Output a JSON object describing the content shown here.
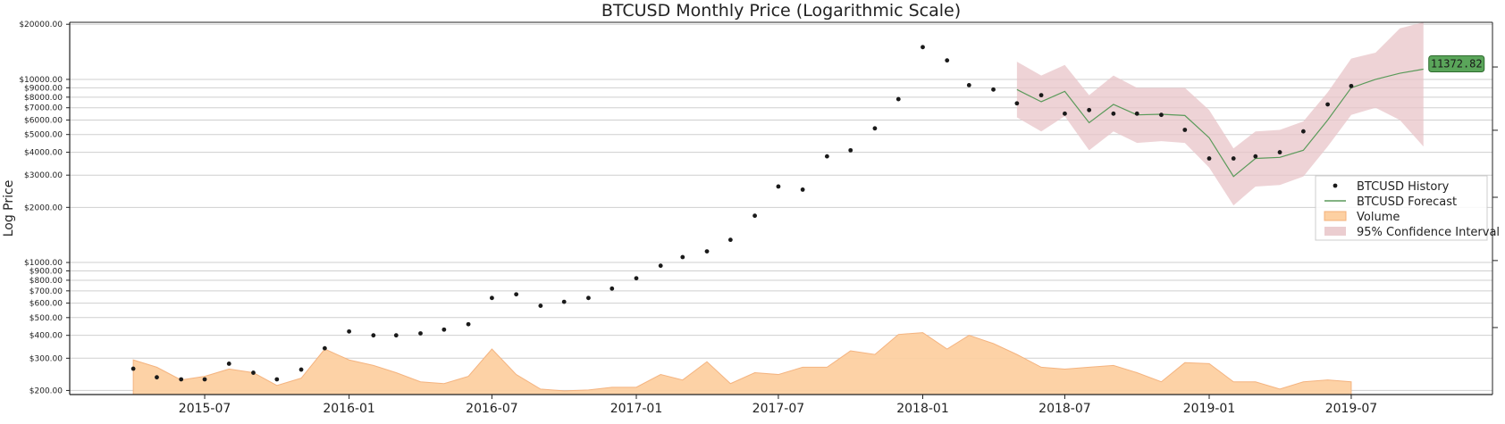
{
  "chart_data": {
    "type": "line",
    "title": "BTCUSD Monthly Price (Logarithmic Scale)",
    "ylabel": "Log Price",
    "xlabel": "",
    "yscale": "log",
    "ylim": [
      190,
      20500
    ],
    "xlim": [
      "2015-01-10",
      "2019-12-28"
    ],
    "grid": "horizontal",
    "legend_position": "right",
    "colors": {
      "history": "#1a1a1a",
      "forecast": "#5a9a5a",
      "volume": "#fdd0a2",
      "volume_edge": "#f4b07a",
      "ci": "#e8c4c8",
      "callout_fill": "#5aa55a",
      "callout_edge": "#2e6b2e"
    },
    "x_ticks": [
      "2015-07",
      "2016-01",
      "2016-07",
      "2017-01",
      "2017-07",
      "2018-01",
      "2018-07",
      "2019-01",
      "2019-07"
    ],
    "y_ticks": [
      "$200.00",
      "$300.00",
      "$400.00",
      "$500.00",
      "$600.00",
      "$700.00",
      "$800.00",
      "$900.00",
      "$1000.00",
      "$2000.00",
      "$3000.00",
      "$4000.00",
      "$5000.00",
      "$6000.00",
      "$7000.00",
      "$8000.00",
      "$9000.00",
      "$10000.00",
      "$20000.00"
    ],
    "y_tick_values": [
      200,
      300,
      400,
      500,
      600,
      700,
      800,
      900,
      1000,
      2000,
      3000,
      4000,
      5000,
      6000,
      7000,
      8000,
      9000,
      10000,
      20000
    ],
    "legend": [
      "BTCUSD History",
      "BTCUSD Forecast",
      "Volume",
      "95% Confidence Interval"
    ],
    "annotation": "11372.82",
    "history": {
      "name": "BTCUSD History",
      "x": [
        "2015-04-01",
        "2015-05-01",
        "2015-06-01",
        "2015-07-01",
        "2015-08-01",
        "2015-09-01",
        "2015-10-01",
        "2015-11-01",
        "2015-12-01",
        "2016-01-01",
        "2016-02-01",
        "2016-03-01",
        "2016-04-01",
        "2016-05-01",
        "2016-06-01",
        "2016-07-01",
        "2016-08-01",
        "2016-09-01",
        "2016-10-01",
        "2016-11-01",
        "2016-12-01",
        "2017-01-01",
        "2017-02-01",
        "2017-03-01",
        "2017-04-01",
        "2017-05-01",
        "2017-06-01",
        "2017-07-01",
        "2017-08-01",
        "2017-09-01",
        "2017-10-01",
        "2017-11-01",
        "2017-12-01",
        "2018-01-01",
        "2018-02-01",
        "2018-03-01",
        "2018-04-01",
        "2018-05-01",
        "2018-06-01",
        "2018-07-01",
        "2018-08-01",
        "2018-09-01",
        "2018-10-01",
        "2018-11-01",
        "2018-12-01",
        "2019-01-01",
        "2019-02-01",
        "2019-03-01",
        "2019-04-01",
        "2019-05-01",
        "2019-06-01",
        "2019-07-01"
      ],
      "values": [
        263,
        236,
        230,
        230,
        280,
        250,
        230,
        260,
        340,
        420,
        400,
        400,
        410,
        430,
        460,
        640,
        670,
        580,
        610,
        640,
        720,
        820,
        960,
        1070,
        1150,
        1330,
        1800,
        2600,
        2500,
        3800,
        4100,
        5400,
        7800,
        15000,
        12700,
        9300,
        8800,
        7400,
        8200,
        6500,
        6800,
        6500,
        6500,
        6400,
        5300,
        3700,
        3700,
        3800,
        4000,
        5200,
        7300,
        9200
      ]
    },
    "forecast": {
      "name": "BTCUSD Forecast",
      "x": [
        "2018-05-01",
        "2018-06-01",
        "2018-07-01",
        "2018-08-01",
        "2018-09-01",
        "2018-10-01",
        "2018-11-01",
        "2018-12-01",
        "2019-01-01",
        "2019-02-01",
        "2019-03-01",
        "2019-04-01",
        "2019-05-01",
        "2019-06-01",
        "2019-07-01",
        "2019-08-01",
        "2019-09-01",
        "2019-10-01"
      ],
      "values": [
        8800,
        7550,
        8600,
        5800,
        7300,
        6400,
        6450,
        6350,
        4800,
        2950,
        3700,
        3750,
        4100,
        6000,
        9000,
        10000,
        10800,
        11372.82
      ]
    },
    "ci_upper": [
      12500,
      10500,
      12000,
      8200,
      10500,
      9000,
      9000,
      9000,
      6800,
      4200,
      5200,
      5300,
      5900,
      8500,
      13000,
      14000,
      19000,
      20500
    ],
    "ci_lower": [
      6200,
      5200,
      6300,
      4100,
      5200,
      4500,
      4600,
      4500,
      3300,
      2050,
      2600,
      2650,
      2950,
      4300,
      6400,
      7000,
      6000,
      4300
    ],
    "volume": {
      "name": "Volume",
      "x": [
        "2015-04-01",
        "2015-05-01",
        "2015-06-01",
        "2015-07-01",
        "2015-08-01",
        "2015-09-01",
        "2015-10-01",
        "2015-11-01",
        "2015-12-01",
        "2016-01-01",
        "2016-02-01",
        "2016-03-01",
        "2016-04-01",
        "2016-05-01",
        "2016-06-01",
        "2016-07-01",
        "2016-08-01",
        "2016-09-01",
        "2016-10-01",
        "2016-11-01",
        "2016-12-01",
        "2017-01-01",
        "2017-02-01",
        "2017-03-01",
        "2017-04-01",
        "2017-05-01",
        "2017-06-01",
        "2017-07-01",
        "2017-08-01",
        "2017-09-01",
        "2017-10-01",
        "2017-11-01",
        "2017-12-01",
        "2018-01-01",
        "2018-02-01",
        "2018-03-01",
        "2018-04-01",
        "2018-05-01",
        "2018-06-01",
        "2018-07-01",
        "2018-08-01",
        "2018-09-01",
        "2018-10-01",
        "2018-11-01",
        "2018-12-01",
        "2019-01-01",
        "2019-02-01",
        "2019-03-01",
        "2019-04-01",
        "2019-05-01",
        "2019-06-01",
        "2019-07-01"
      ],
      "values": [
        0.38,
        0.3,
        0.16,
        0.2,
        0.28,
        0.24,
        0.1,
        0.18,
        0.5,
        0.38,
        0.32,
        0.24,
        0.14,
        0.12,
        0.2,
        0.5,
        0.22,
        0.06,
        0.04,
        0.05,
        0.08,
        0.08,
        0.22,
        0.16,
        0.36,
        0.12,
        0.24,
        0.22,
        0.3,
        0.3,
        0.48,
        0.44,
        0.66,
        0.68,
        0.5,
        0.65,
        0.56,
        0.44,
        0.3,
        0.28,
        0.3,
        0.32,
        0.24,
        0.14,
        0.35,
        0.34,
        0.14,
        0.14,
        0.06,
        0.14,
        0.16,
        0.14
      ]
    }
  }
}
